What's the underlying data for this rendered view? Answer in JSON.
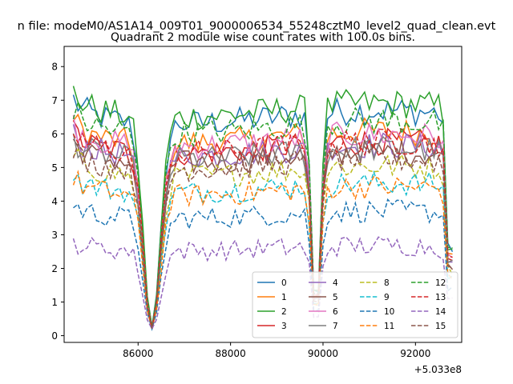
{
  "chart_data": {
    "type": "line",
    "suptitle": "n file: modeM0/AS1A14_009T01_9000006534_55248cztM0_level2_quad_clean.evt",
    "title": "Quadrant 2 module wise count rates with 100.0s bins.",
    "xlabel": "",
    "ylabel": "",
    "offset_text": "+5.033e8",
    "x_offset": 503300000,
    "xlim": [
      84400,
      93000
    ],
    "ylim": [
      -0.2,
      8.6
    ],
    "x_ticks": [
      86000,
      88000,
      90000,
      92000
    ],
    "x_tick_labels": [
      "86000",
      "88000",
      "90000",
      "92000"
    ],
    "y_ticks": [
      0,
      1,
      2,
      3,
      4,
      5,
      6,
      7,
      8
    ],
    "y_tick_labels": [
      "0",
      "1",
      "2",
      "3",
      "4",
      "5",
      "6",
      "7",
      "8"
    ],
    "time_range": [
      84600,
      92800
    ],
    "bin_size": 100,
    "legend_position": "lower-right",
    "series": [
      {
        "name": "0",
        "color": "#1f77b4",
        "dash": "solid",
        "level": 6.5
      },
      {
        "name": "1",
        "color": "#ff7f0e",
        "dash": "solid",
        "level": 5.9
      },
      {
        "name": "2",
        "color": "#2ca02c",
        "dash": "solid",
        "level": 6.7
      },
      {
        "name": "3",
        "color": "#d62728",
        "dash": "solid",
        "level": 5.6
      },
      {
        "name": "4",
        "color": "#9467bd",
        "dash": "solid",
        "level": 5.5
      },
      {
        "name": "5",
        "color": "#8c564b",
        "dash": "solid",
        "level": 5.3
      },
      {
        "name": "6",
        "color": "#e377c2",
        "dash": "solid",
        "level": 5.8
      },
      {
        "name": "7",
        "color": "#7f7f7f",
        "dash": "solid",
        "level": 5.4
      },
      {
        "name": "8",
        "color": "#bcbd22",
        "dash": "dashed",
        "level": 4.9
      },
      {
        "name": "9",
        "color": "#17becf",
        "dash": "dashed",
        "level": 4.4
      },
      {
        "name": "10",
        "color": "#1f77b4",
        "dash": "dashed",
        "level": 3.6
      },
      {
        "name": "11",
        "color": "#ff7f0e",
        "dash": "dashed",
        "level": 4.3
      },
      {
        "name": "12",
        "color": "#2ca02c",
        "dash": "dashed",
        "level": 6.2
      },
      {
        "name": "13",
        "color": "#d62728",
        "dash": "dashed",
        "level": 5.6
      },
      {
        "name": "14",
        "color": "#9467bd",
        "dash": "dashed",
        "level": 2.6
      },
      {
        "name": "15",
        "color": "#8c564b",
        "dash": "dashed",
        "level": 5.1
      }
    ]
  }
}
